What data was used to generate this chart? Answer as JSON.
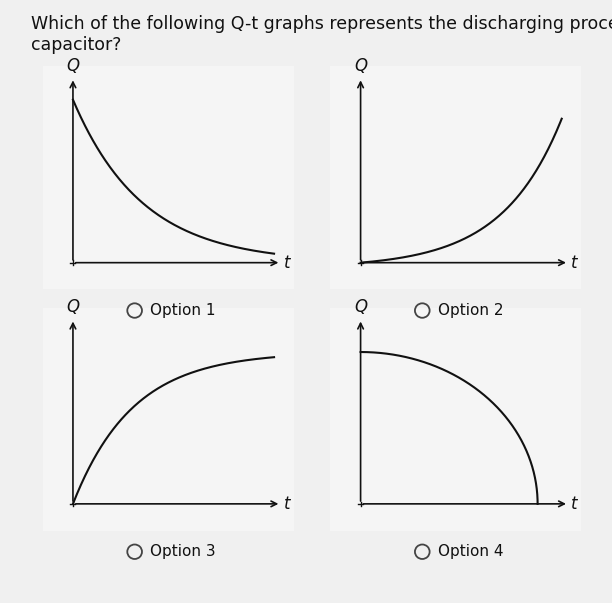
{
  "question_line1": "Which of the following Q-t graphs represents the discharging process of a",
  "question_line2": "capacitor?",
  "options": [
    "Option 1",
    "Option 2",
    "Option 3",
    "Option 4"
  ],
  "background_color": "#f0f0f0",
  "panel_color": "#f5f5f5",
  "panel_border_color": "#cccccc",
  "curve_color": "#111111",
  "axis_color": "#111111",
  "text_color": "#111111",
  "title_fontsize": 12.5,
  "label_fontsize": 12,
  "option_fontsize": 11
}
